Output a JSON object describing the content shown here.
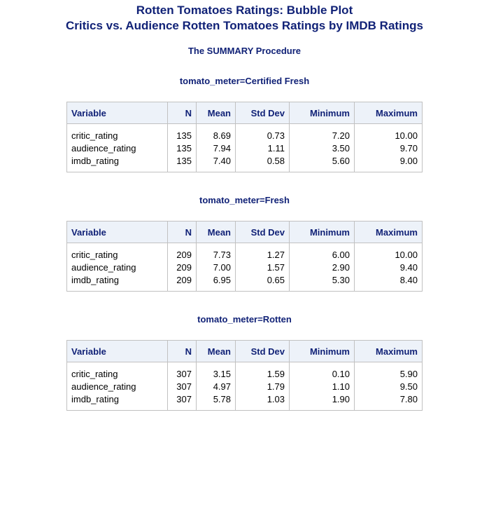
{
  "titles": {
    "title1": "Rotten Tomatoes Ratings: Bubble Plot",
    "title2": "Critics vs. Audience Rotten Tomatoes Ratings by IMDB Ratings"
  },
  "procedure_title": "The SUMMARY Procedure",
  "columns": [
    "Variable",
    "N",
    "Mean",
    "Std Dev",
    "Minimum",
    "Maximum"
  ],
  "groups": [
    {
      "byline": "tomato_meter=Certified Fresh",
      "rows": [
        [
          "critic_rating",
          "135",
          "8.69",
          "0.73",
          "7.20",
          "10.00"
        ],
        [
          "audience_rating",
          "135",
          "7.94",
          "1.11",
          "3.50",
          "9.70"
        ],
        [
          "imdb_rating",
          "135",
          "7.40",
          "0.58",
          "5.60",
          "9.00"
        ]
      ]
    },
    {
      "byline": "tomato_meter=Fresh",
      "rows": [
        [
          "critic_rating",
          "209",
          "7.73",
          "1.27",
          "6.00",
          "10.00"
        ],
        [
          "audience_rating",
          "209",
          "7.00",
          "1.57",
          "2.90",
          "9.40"
        ],
        [
          "imdb_rating",
          "209",
          "6.95",
          "0.65",
          "5.30",
          "8.40"
        ]
      ]
    },
    {
      "byline": "tomato_meter=Rotten",
      "rows": [
        [
          "critic_rating",
          "307",
          "3.15",
          "1.59",
          "0.10",
          "5.90"
        ],
        [
          "audience_rating",
          "307",
          "4.97",
          "1.79",
          "1.10",
          "9.50"
        ],
        [
          "imdb_rating",
          "307",
          "5.78",
          "1.03",
          "1.90",
          "7.80"
        ]
      ]
    }
  ]
}
